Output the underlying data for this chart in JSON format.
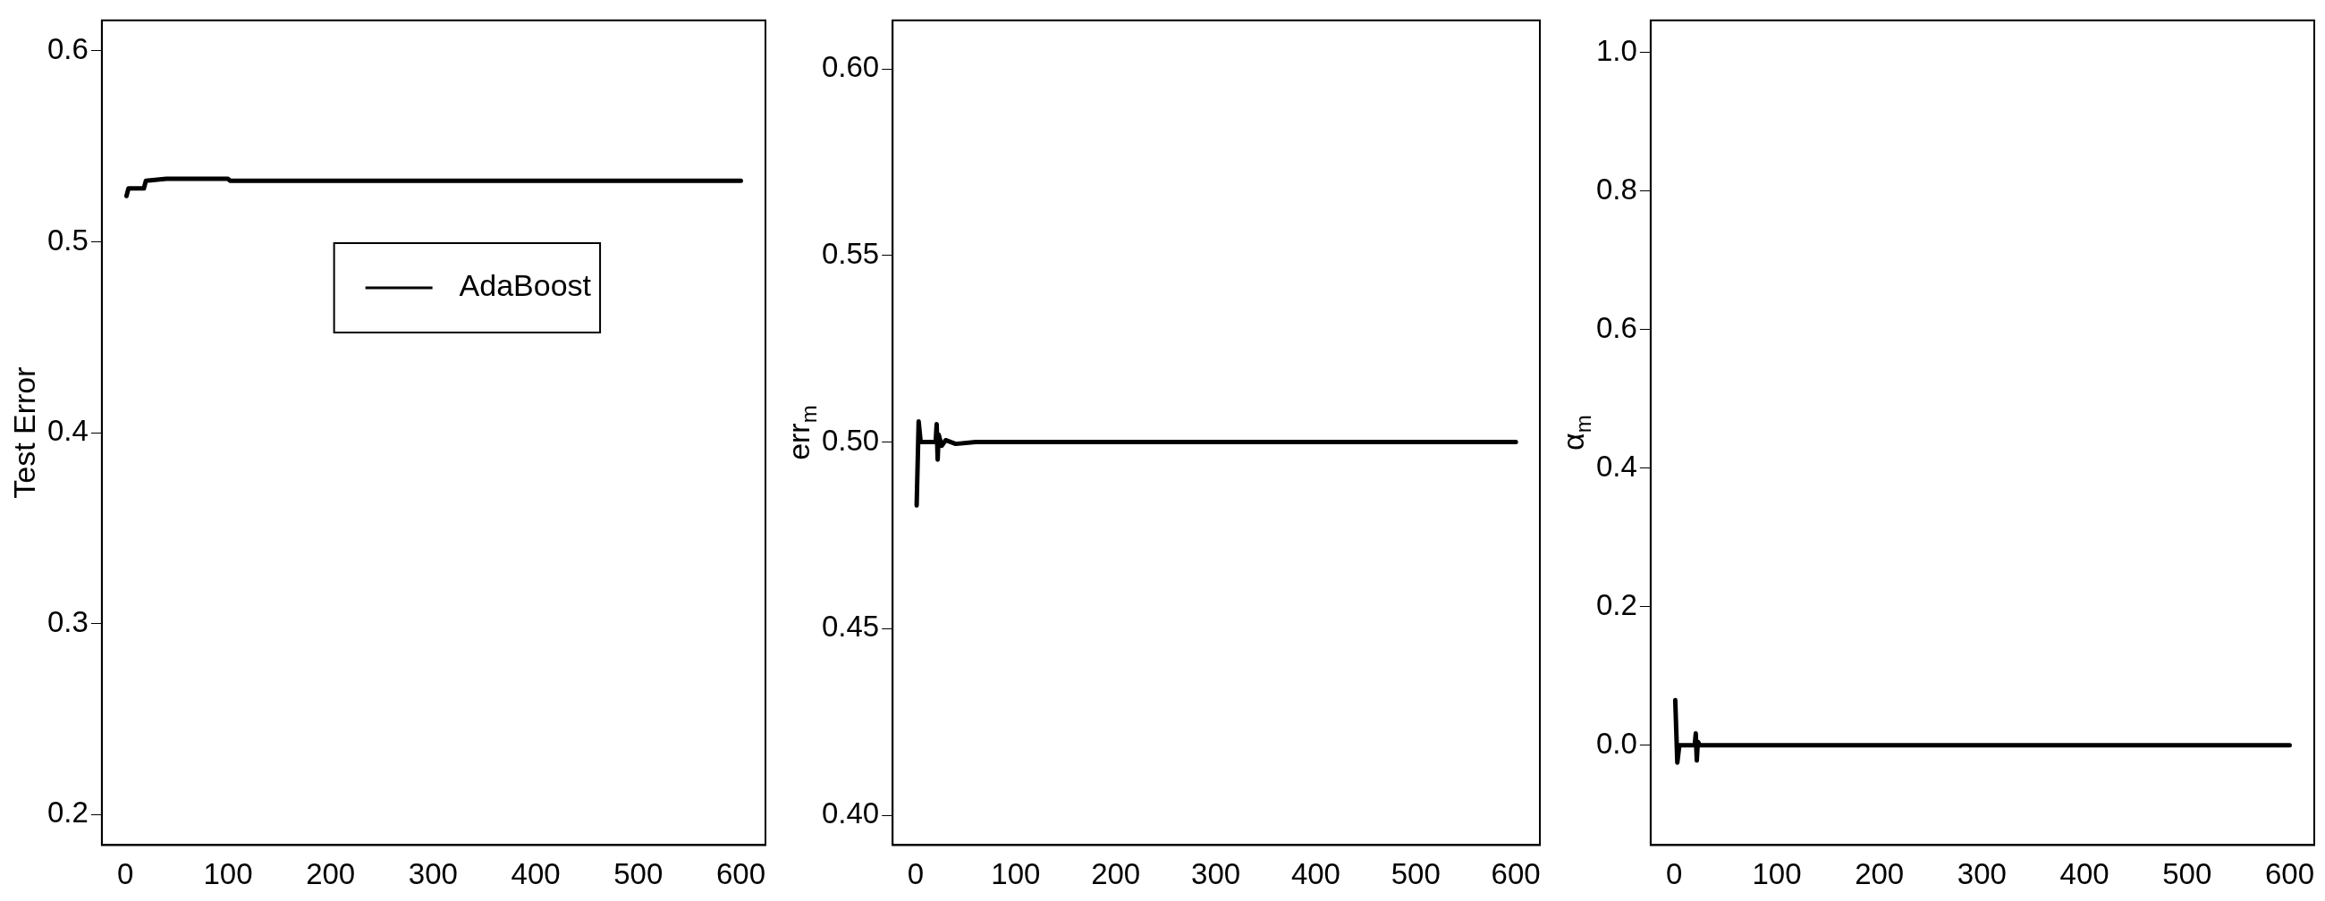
{
  "chart_data": [
    {
      "type": "line",
      "ylabel": "Test Error",
      "legend": "top right",
      "grid": false,
      "marker": "none",
      "line_style": "solid",
      "xlim": [
        -23,
        624
      ],
      "xticks": [
        0,
        100,
        200,
        300,
        400,
        500,
        600
      ],
      "ylim": [
        0.184,
        0.616
      ],
      "yticks": [
        0.2,
        0.3,
        0.4,
        0.5,
        0.6
      ],
      "series": [
        {
          "name": "AdaBoost",
          "color": "#000000",
          "x": [
            1,
            3,
            18,
            20,
            40,
            100,
            102,
            600
          ],
          "values": [
            0.524,
            0.528,
            0.528,
            0.532,
            0.533,
            0.533,
            0.532,
            0.532
          ]
        }
      ]
    },
    {
      "type": "line",
      "ylabel": "err$_{m}$",
      "legend": false,
      "grid": false,
      "marker": "none",
      "line_style": "solid",
      "xlim": [
        -23,
        624
      ],
      "xticks": [
        0,
        100,
        200,
        300,
        400,
        500,
        600
      ],
      "ylim": [
        0.392,
        0.613
      ],
      "yticks": [
        {
          "value": 0.4,
          "label": "0.40"
        },
        {
          "value": 0.45,
          "label": "0.45"
        },
        {
          "value": 0.5,
          "label": "0.50"
        },
        {
          "value": 0.55,
          "label": "0.55"
        },
        {
          "value": 0.6,
          "label": "0.60"
        }
      ],
      "series": [
        {
          "color": "#000000",
          "x": [
            1,
            3,
            5,
            20,
            21,
            22,
            23,
            26,
            30,
            40,
            60,
            600
          ],
          "values": [
            0.483,
            0.5055,
            0.5,
            0.5,
            0.5048,
            0.4953,
            0.502,
            0.499,
            0.5005,
            0.4995,
            0.5,
            0.5
          ]
        }
      ]
    },
    {
      "type": "line",
      "ylabel": "α$_{m}$",
      "legend": false,
      "grid": false,
      "marker": "none",
      "line_style": "solid",
      "xlim": [
        -23,
        624
      ],
      "xticks": [
        0,
        100,
        200,
        300,
        400,
        500,
        600
      ],
      "ylim": [
        -0.144,
        1.046
      ],
      "yticks": [
        {
          "value": 0,
          "label": "0.0"
        },
        {
          "value": 0.2,
          "label": "0.2"
        },
        {
          "value": 0.4,
          "label": "0.4"
        },
        {
          "value": 0.6,
          "label": "0.6"
        },
        {
          "value": 0.8,
          "label": "0.8"
        },
        {
          "value": 1,
          "label": "1.0"
        }
      ],
      "series": [
        {
          "color": "#000000",
          "x": [
            1,
            3,
            5,
            20,
            21,
            22,
            23,
            25,
            600
          ],
          "values": [
            0.065,
            -0.025,
            0,
            0,
            0.017,
            -0.022,
            0.005,
            0,
            0
          ]
        }
      ]
    }
  ]
}
